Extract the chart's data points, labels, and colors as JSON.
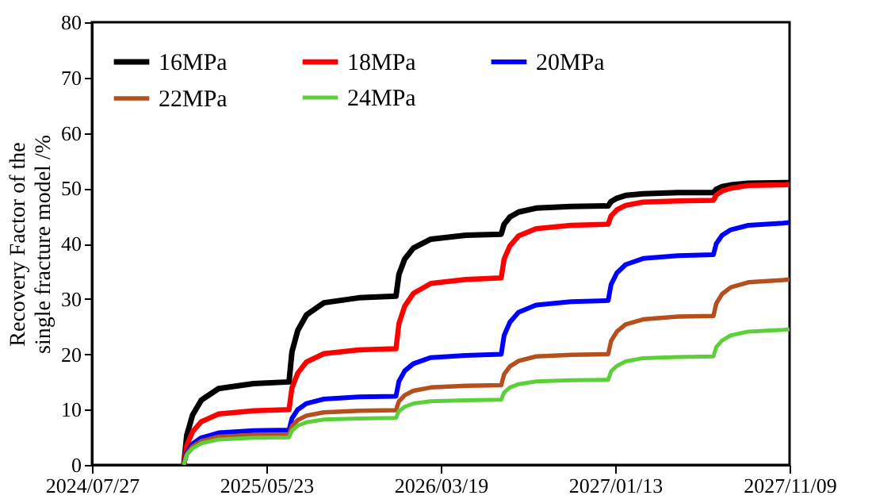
{
  "chart_data": {
    "type": "line",
    "ylabel": "Recovery Factor of the single fracture model /%",
    "x": [
      "2025-01-01",
      "2025-01-06",
      "2025-01-16",
      "2025-01-31",
      "2025-03-02",
      "2025-05-01",
      "2025-07-01",
      "2025-07-06",
      "2025-07-16",
      "2025-07-31",
      "2025-08-30",
      "2025-10-29",
      "2026-01-01",
      "2026-01-06",
      "2026-01-16",
      "2026-01-31",
      "2026-03-02",
      "2026-05-01",
      "2026-07-01",
      "2026-07-06",
      "2026-07-16",
      "2026-07-31",
      "2026-08-30",
      "2026-10-29",
      "2027-01-01",
      "2027-01-06",
      "2027-01-16",
      "2027-01-31",
      "2027-03-02",
      "2027-05-01",
      "2027-07-01",
      "2027-07-06",
      "2027-07-16",
      "2027-07-31",
      "2027-08-30",
      "2027-10-29",
      "2027-11-09"
    ],
    "series": [
      {
        "name": "16MPa",
        "color": "#000000",
        "values": [
          0,
          5.3,
          9,
          11.7,
          13.8,
          14.7,
          15,
          20.4,
          24.3,
          27.1,
          29.3,
          30.2,
          30.5,
          34.4,
          37.2,
          39.2,
          40.8,
          41.5,
          41.7,
          43.5,
          44.8,
          45.7,
          46.4,
          46.7,
          46.8,
          47.6,
          48.2,
          48.7,
          49,
          49.2,
          49.2,
          49.8,
          50.3,
          50.6,
          50.9,
          51,
          51
        ]
      },
      {
        "name": "18MPa",
        "color": "#ff0000",
        "values": [
          0,
          3.5,
          6,
          7.8,
          9.2,
          9.8,
          10,
          13.9,
          16.6,
          18.6,
          20.1,
          20.8,
          21,
          25.5,
          28.7,
          31,
          32.8,
          33.5,
          33.8,
          37.2,
          39.6,
          41.4,
          42.7,
          43.3,
          43.5,
          45,
          46.1,
          46.9,
          47.5,
          47.7,
          47.8,
          48.8,
          49.5,
          50,
          50.5,
          50.6,
          50.7
        ]
      },
      {
        "name": "20MPa",
        "color": "#0000ff",
        "values": [
          0,
          2.2,
          3.8,
          4.9,
          5.8,
          6.2,
          6.3,
          8.4,
          10,
          11.1,
          11.9,
          12.3,
          12.4,
          15.1,
          17,
          18.3,
          19.4,
          19.8,
          20,
          23.4,
          25.8,
          27.6,
          28.9,
          29.5,
          29.7,
          32.6,
          34.7,
          36.2,
          37.3,
          37.8,
          38,
          40,
          41.5,
          42.5,
          43.3,
          43.7,
          43.8
        ]
      },
      {
        "name": "22MPa",
        "color": "#b5501e",
        "values": [
          0,
          1.9,
          3.3,
          4.3,
          5.1,
          5.4,
          5.5,
          7,
          8.1,
          8.9,
          9.5,
          9.8,
          9.9,
          11.5,
          12.6,
          13.4,
          14,
          14.3,
          14.4,
          16.4,
          17.8,
          18.8,
          19.6,
          19.9,
          20,
          22.4,
          24.1,
          25.4,
          26.3,
          26.8,
          26.9,
          29.2,
          30.9,
          32.1,
          33,
          33.4,
          33.5
        ]
      },
      {
        "name": "24MPa",
        "color": "#5ccf3a",
        "values": [
          0,
          1.8,
          3,
          3.9,
          4.6,
          4.9,
          5,
          6.2,
          7.1,
          7.7,
          8.2,
          8.4,
          8.5,
          9.7,
          10.5,
          11.1,
          11.5,
          11.7,
          11.8,
          13.1,
          14,
          14.6,
          15.1,
          15.3,
          15.4,
          16.9,
          17.9,
          18.7,
          19.3,
          19.5,
          19.6,
          21.3,
          22.5,
          23.4,
          24.1,
          24.4,
          24.5
        ]
      }
    ],
    "xlim": [
      "2024-07-27",
      "2027-11-09"
    ],
    "xticks": [
      {
        "value": "2024-07-27",
        "label": "2024/07/27"
      },
      {
        "value": "2025-05-23",
        "label": "2025/05/23"
      },
      {
        "value": "2026-03-19",
        "label": "2026/03/19"
      },
      {
        "value": "2027-01-13",
        "label": "2027/01/13"
      },
      {
        "value": "2027-11-09",
        "label": "2027/11/09"
      }
    ],
    "ylim": [
      0,
      80
    ],
    "yticks": [
      0,
      10,
      20,
      30,
      40,
      50,
      60,
      70,
      80
    ],
    "grid": false,
    "legend": "top left",
    "marker": "none",
    "line_style": "solid"
  }
}
